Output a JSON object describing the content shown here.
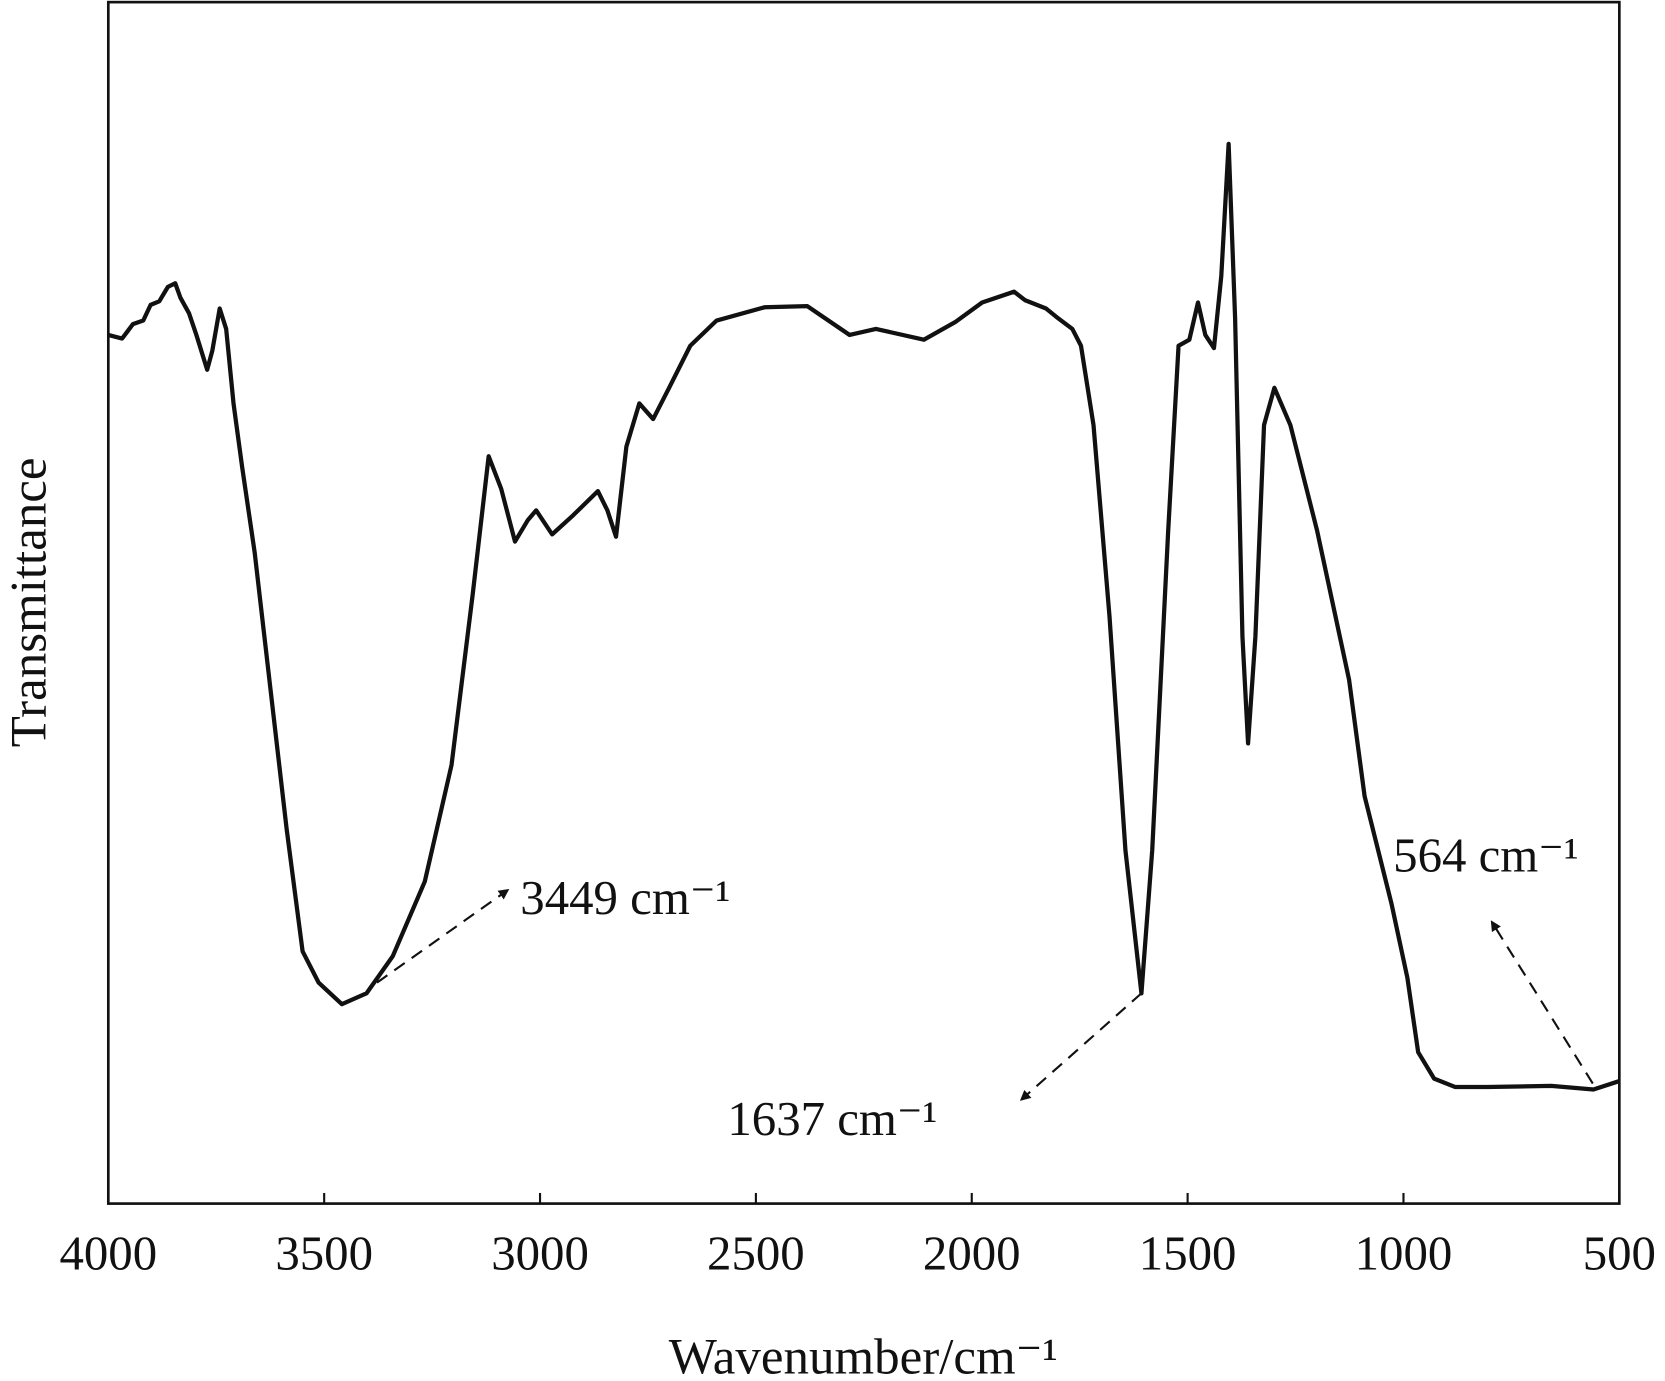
{
  "chart_data": {
    "type": "line",
    "x_label": "Wavenumber/cm⁻¹",
    "y_label": "Transmittance",
    "x": [
      4000,
      3968,
      3943,
      3919,
      3902,
      3882,
      3862,
      3845,
      3833,
      3813,
      3796,
      3771,
      3759,
      3742,
      3727,
      3710,
      3690,
      3661,
      3624,
      3587,
      3550,
      3513,
      3459,
      3402,
      3341,
      3267,
      3205,
      3156,
      3119,
      3090,
      3058,
      3028,
      3009,
      2972,
      2923,
      2866,
      2844,
      2824,
      2800,
      2770,
      2738,
      2701,
      2652,
      2591,
      2480,
      2381,
      2283,
      2222,
      2111,
      2037,
      1976,
      1902,
      1877,
      1828,
      1804,
      1767,
      1747,
      1718,
      1681,
      1644,
      1607,
      1582,
      1545,
      1521,
      1496,
      1476,
      1459,
      1439,
      1422,
      1405,
      1390,
      1373,
      1360,
      1343,
      1323,
      1299,
      1262,
      1200,
      1126,
      1090,
      1028,
      991,
      966,
      929,
      880,
      806,
      658,
      560,
      500
    ],
    "series": [
      {
        "color": "#111111",
        "values": [
          72.3,
          72.0,
          73.2,
          73.5,
          74.8,
          75.1,
          76.3,
          76.6,
          75.4,
          74.1,
          72.3,
          69.4,
          71.0,
          74.5,
          72.8,
          66.6,
          61.3,
          54.2,
          42.7,
          31.2,
          21.0,
          18.4,
          16.6,
          17.5,
          20.6,
          26.8,
          36.5,
          50.7,
          62.2,
          59.5,
          55.1,
          56.9,
          57.7,
          55.7,
          57.3,
          59.3,
          57.7,
          55.5,
          63.0,
          66.6,
          65.3,
          67.9,
          71.4,
          73.5,
          74.6,
          74.7,
          72.3,
          72.8,
          71.9,
          73.4,
          75.0,
          75.9,
          75.2,
          74.5,
          73.8,
          72.8,
          71.4,
          64.8,
          48.9,
          29.4,
          17.5,
          29.4,
          56.0,
          71.4,
          71.9,
          75.0,
          72.3,
          71.2,
          77.2,
          88.2,
          73.7,
          47.2,
          38.3,
          47.2,
          64.8,
          67.9,
          64.8,
          56.0,
          43.6,
          33.9,
          25.0,
          18.8,
          12.6,
          10.4,
          9.7,
          9.7,
          9.8,
          9.5,
          10.2
        ]
      }
    ],
    "xlim": [
      4000,
      500
    ],
    "xticks": [
      4000,
      3500,
      3000,
      2500,
      2000,
      1500,
      1000,
      500
    ],
    "ylim": [
      0,
      100
    ],
    "annotations": [
      "3449 cm⁻¹",
      "1637 cm⁻¹",
      "564 cm⁻¹"
    ]
  }
}
